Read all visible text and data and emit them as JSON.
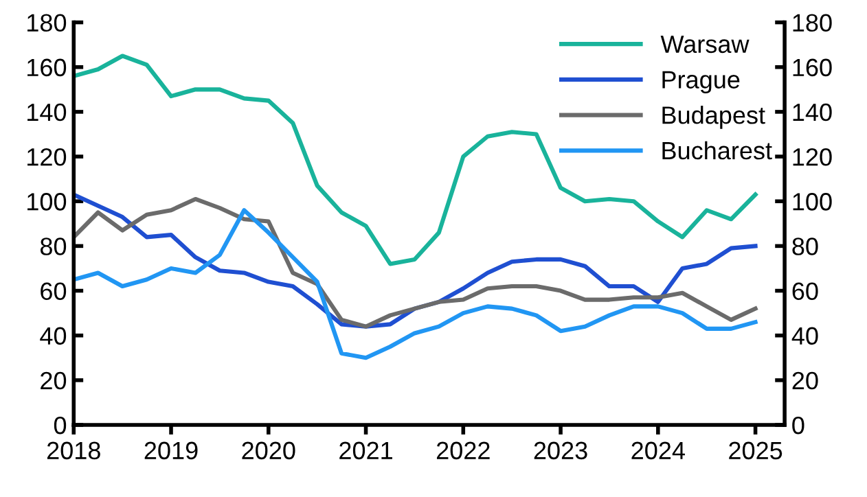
{
  "chart_data": {
    "type": "line",
    "x": [
      2018,
      2018.25,
      2018.5,
      2018.75,
      2019,
      2019.25,
      2019.5,
      2019.75,
      2020,
      2020.25,
      2020.5,
      2020.75,
      2021,
      2021.25,
      2021.5,
      2021.75,
      2022,
      2022.25,
      2022.5,
      2022.75,
      2023,
      2023.25,
      2023.5,
      2023.75,
      2024,
      2024.25,
      2024.5,
      2024.75,
      2025
    ],
    "series": [
      {
        "name": "Warsaw",
        "color": "#19b39b",
        "values": [
          156,
          159,
          165,
          161,
          147,
          150,
          150,
          146,
          145,
          135,
          107,
          95,
          89,
          72,
          74,
          86,
          120,
          129,
          131,
          130,
          106,
          100,
          101,
          100,
          91,
          84,
          96,
          92,
          103
        ]
      },
      {
        "name": "Prague",
        "color": "#1f4fd1",
        "values": [
          103,
          98,
          93,
          84,
          85,
          75,
          69,
          68,
          64,
          62,
          54,
          45,
          44,
          45,
          52,
          55,
          61,
          68,
          73,
          74,
          74,
          71,
          62,
          62,
          55,
          70,
          72,
          79,
          80
        ]
      },
      {
        "name": "Budapest",
        "color": "#6b6b6b",
        "values": [
          84,
          95,
          87,
          94,
          96,
          101,
          97,
          92,
          91,
          68,
          63,
          47,
          44,
          49,
          52,
          55,
          56,
          61,
          62,
          62,
          60,
          56,
          56,
          57,
          57,
          59,
          53,
          47,
          52
        ]
      },
      {
        "name": "Bucharest",
        "color": "#2196f3",
        "values": [
          65,
          68,
          62,
          65,
          70,
          68,
          76,
          96,
          86,
          75,
          64,
          32,
          30,
          35,
          41,
          44,
          50,
          53,
          52,
          49,
          42,
          44,
          49,
          53,
          53,
          50,
          43,
          43,
          46
        ]
      }
    ],
    "xlim": [
      2018,
      2025.3
    ],
    "xticks": [
      2018,
      2019,
      2020,
      2021,
      2022,
      2023,
      2024,
      2025
    ],
    "ylim": [
      0,
      180
    ],
    "yticks": [
      0,
      20,
      40,
      60,
      80,
      100,
      120,
      140,
      160,
      180
    ],
    "y2lim": [
      0,
      180
    ],
    "y2ticks": [
      0,
      20,
      40,
      60,
      80,
      100,
      120,
      140,
      160,
      180
    ],
    "grid": false,
    "legend": "top right",
    "line_style": "solid",
    "marker": "none"
  }
}
